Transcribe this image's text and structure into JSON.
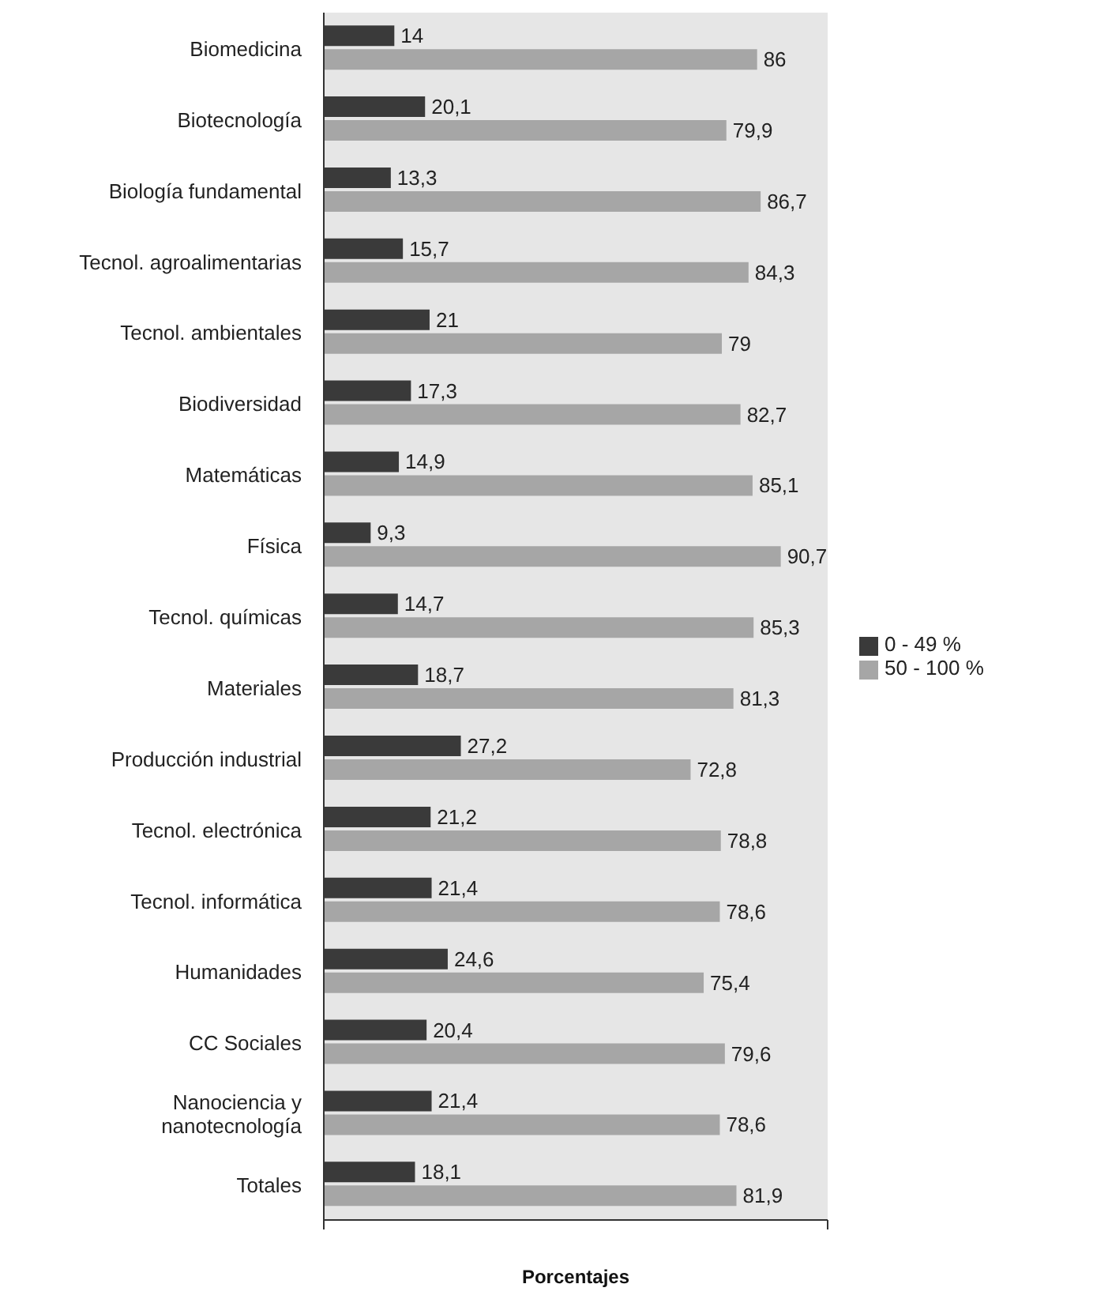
{
  "chart_data": {
    "type": "bar",
    "orientation": "horizontal",
    "xlabel": "Porcentajes",
    "categories": [
      "Biomedicina",
      "Biotecnología",
      "Biología fundamental",
      "Tecnol. agroalimentarias",
      "Tecnol. ambientales",
      "Biodiversidad",
      "Matemáticas",
      "Física",
      "Tecnol. químicas",
      "Materiales",
      "Producción industrial",
      "Tecnol. electrónica",
      "Tecnol. informática",
      "Humanidades",
      "CC Sociales",
      "Nanociencia y nanotecnología",
      "Totales"
    ],
    "series": [
      {
        "name": "0 - 49 %",
        "color": "#3a3a3a",
        "values": [
          14,
          20.1,
          13.3,
          15.7,
          21,
          17.3,
          14.9,
          9.3,
          14.7,
          18.7,
          27.2,
          21.2,
          21.4,
          24.6,
          20.4,
          21.4,
          18.1
        ],
        "value_labels": [
          "14",
          "20,1",
          "13,3",
          "15,7",
          "21",
          "17,3",
          "14,9",
          "9,3",
          "14,7",
          "18,7",
          "27,2",
          "21,2",
          "21,4",
          "24,6",
          "20,4",
          "21,4",
          "18,1"
        ]
      },
      {
        "name": "50 - 100 %",
        "color": "#a6a6a6",
        "values": [
          86,
          79.9,
          86.7,
          84.3,
          79,
          82.7,
          85.1,
          90.7,
          85.3,
          81.3,
          72.8,
          78.8,
          78.6,
          75.4,
          79.6,
          78.6,
          81.9
        ],
        "value_labels": [
          "86",
          "79,9",
          "86,7",
          "84,3",
          "79",
          "82,7",
          "85,1",
          "90,7",
          "85,3",
          "81,3",
          "72,8",
          "78,8",
          "78,6",
          "75,4",
          "79,6",
          "78,6",
          "81,9"
        ]
      }
    ],
    "xlim": [
      0,
      100
    ],
    "xticks": [
      {
        "value": 0,
        "label": null
      },
      {
        "value": 100,
        "label": null
      }
    ],
    "legend": "right",
    "grid": false
  }
}
